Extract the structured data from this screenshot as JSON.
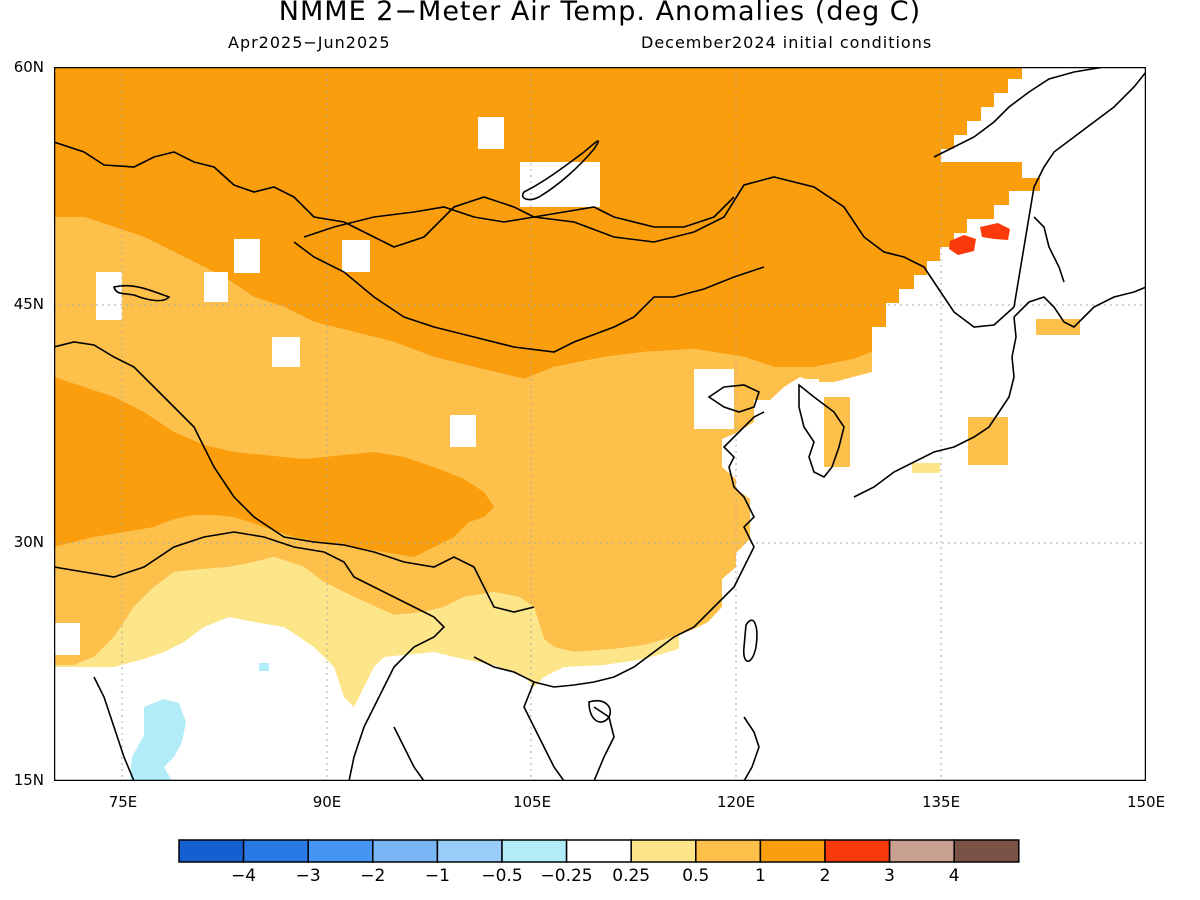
{
  "title": "NMME 2−Meter Air Temp. Anomalies (deg C)",
  "period": "Apr2025−Jun2025",
  "init": "December2024 initial conditions",
  "map": {
    "lon_range": [
      70,
      150
    ],
    "lat_range": [
      15,
      60
    ],
    "lat_labels": [
      "60N",
      "45N",
      "30N",
      "15N"
    ],
    "lon_labels": [
      "75E",
      "90E",
      "105E",
      "120E",
      "135E",
      "150E"
    ],
    "colors": {
      "land_outline": "#000000",
      "ocean": "#ffffff",
      "grid": "#aaaaaa"
    }
  },
  "legend": {
    "colors": [
      "#1560d0",
      "#2a7ae6",
      "#4496f2",
      "#79b6f6",
      "#99ccf9",
      "#b2ecf8",
      "#ffffff",
      "#fde68a",
      "#fdc04a",
      "#fb9e0e",
      "#fa3a0a",
      "#c8a08f",
      "#7a5246"
    ],
    "labels": [
      "−4",
      "−3",
      "−2",
      "−1",
      "−0.5",
      "−0.25",
      "0.25",
      "0.5",
      "1",
      "2",
      "3",
      "4"
    ]
  }
}
